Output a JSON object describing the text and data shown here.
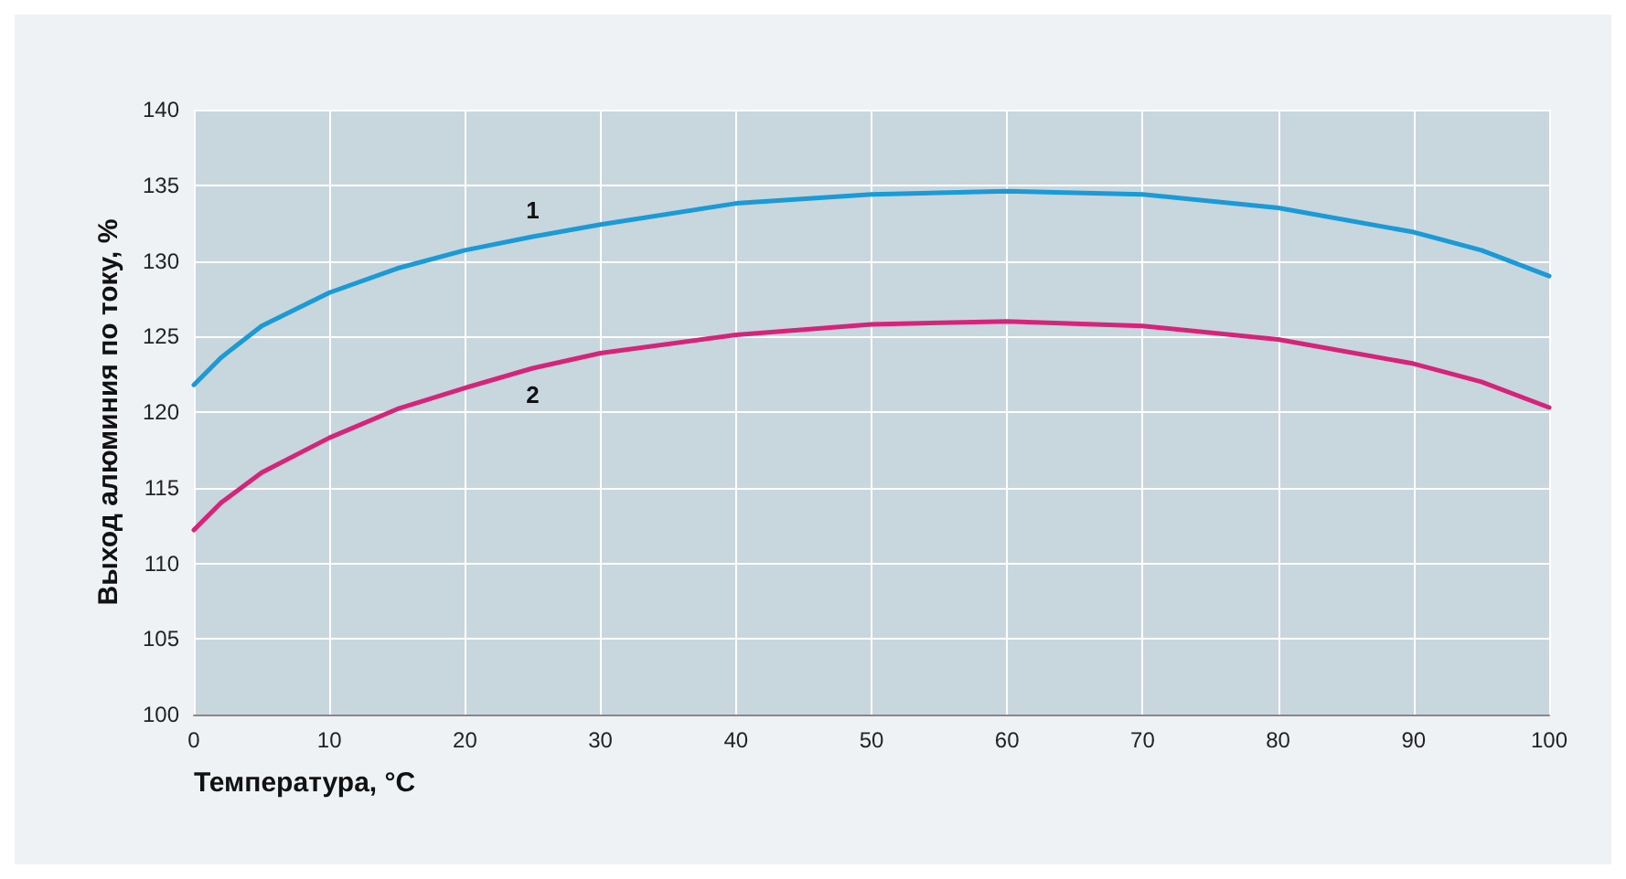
{
  "chart_data": {
    "type": "line",
    "xlabel": "Температура, °C",
    "ylabel": "Выход алюминия по току, %",
    "xlim": [
      0,
      100
    ],
    "xticks": [
      0,
      10,
      20,
      30,
      40,
      50,
      60,
      70,
      80,
      90,
      100
    ],
    "ylim": [
      100,
      140
    ],
    "yticks": [
      100,
      105,
      110,
      115,
      120,
      125,
      130,
      135,
      140
    ],
    "grid": true,
    "marker": "none",
    "line_style": "solid",
    "series": [
      {
        "name": "1",
        "color": "#1a9ad6",
        "x": [
          0,
          2,
          5,
          10,
          15,
          20,
          25,
          30,
          40,
          50,
          60,
          70,
          80,
          90,
          95,
          100
        ],
        "values": [
          121.8,
          123.6,
          125.7,
          127.9,
          129.5,
          130.7,
          131.6,
          132.4,
          133.8,
          134.4,
          134.6,
          134.4,
          133.5,
          131.9,
          130.7,
          129.0
        ]
      },
      {
        "name": "2",
        "color": "#d6247a",
        "x": [
          0,
          2,
          5,
          10,
          15,
          20,
          25,
          30,
          40,
          50,
          60,
          70,
          80,
          90,
          95,
          100
        ],
        "values": [
          112.2,
          114.0,
          116.0,
          118.3,
          120.2,
          121.6,
          122.9,
          123.9,
          125.1,
          125.8,
          126.0,
          125.7,
          124.8,
          123.2,
          122.0,
          120.3
        ]
      }
    ]
  }
}
